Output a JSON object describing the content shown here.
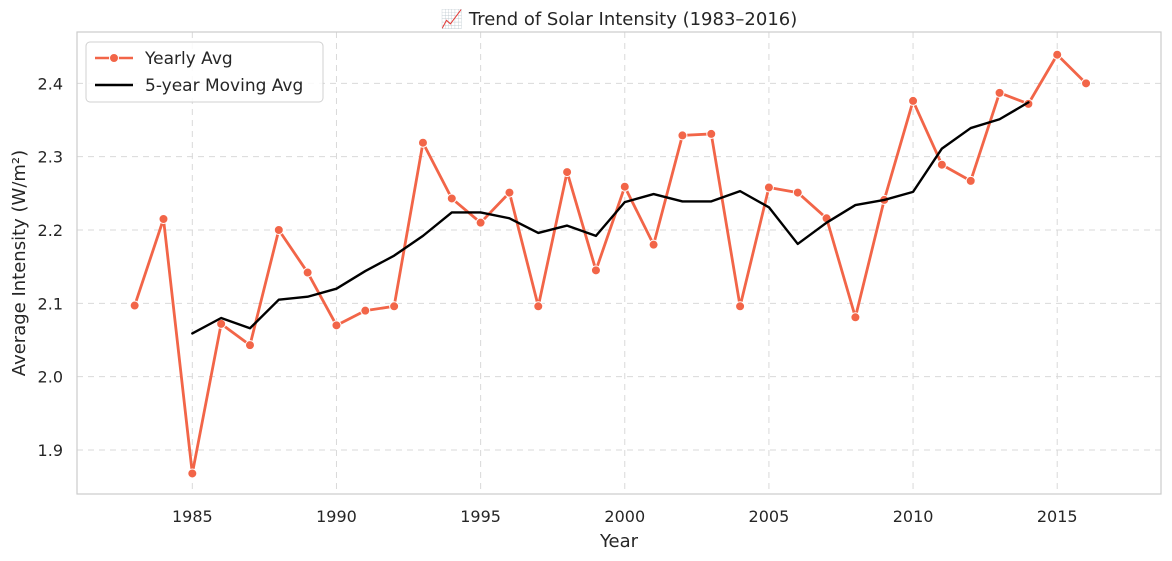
{
  "chart_data": {
    "type": "line",
    "title": "📈 Trend of Solar Intensity (1983–2016)",
    "xlabel": "Year",
    "ylabel": "Average Intensity (W/m²)",
    "xlim": [
      1981,
      2018.6
    ],
    "ylim": [
      1.84,
      2.47
    ],
    "x_ticks": [
      1985,
      1990,
      1995,
      2000,
      2005,
      2010,
      2015
    ],
    "y_ticks": [
      1.9,
      2.0,
      2.1,
      2.2,
      2.3,
      2.4
    ],
    "y_tick_labels": [
      "1.9",
      "2.0",
      "2.1",
      "2.2",
      "2.3",
      "2.4"
    ],
    "grid": true,
    "legend_position": "top-left",
    "series": [
      {
        "name": "Yearly Avg",
        "color": "#f26548",
        "marker": "circle",
        "x": [
          1983,
          1984,
          1985,
          1986,
          1987,
          1988,
          1989,
          1990,
          1991,
          1992,
          1993,
          1994,
          1995,
          1996,
          1997,
          1998,
          1999,
          2000,
          2001,
          2002,
          2003,
          2004,
          2005,
          2006,
          2007,
          2008,
          2009,
          2010,
          2011,
          2012,
          2013,
          2014,
          2015,
          2016
        ],
        "values": [
          2.097,
          2.215,
          1.868,
          2.072,
          2.043,
          2.2,
          2.142,
          2.07,
          2.09,
          2.096,
          2.319,
          2.243,
          2.21,
          2.251,
          2.096,
          2.279,
          2.145,
          2.259,
          2.18,
          2.329,
          2.331,
          2.096,
          2.258,
          2.251,
          2.216,
          2.081,
          2.241,
          2.376,
          2.289,
          2.267,
          2.387,
          2.372,
          2.439,
          2.4
        ]
      },
      {
        "name": "5-year Moving Avg",
        "color": "#000000",
        "marker": "none",
        "x": [
          1985,
          1986,
          1987,
          1988,
          1989,
          1990,
          1991,
          1992,
          1993,
          1994,
          1995,
          1996,
          1997,
          1998,
          1999,
          2000,
          2001,
          2002,
          2003,
          2004,
          2005,
          2006,
          2007,
          2008,
          2009,
          2010,
          2011,
          2012,
          2013,
          2014
        ],
        "values": [
          2.059,
          2.08,
          2.066,
          2.105,
          2.109,
          2.12,
          2.144,
          2.165,
          2.192,
          2.224,
          2.224,
          2.216,
          2.196,
          2.206,
          2.192,
          2.238,
          2.249,
          2.239,
          2.239,
          2.253,
          2.231,
          2.181,
          2.21,
          2.234,
          2.241,
          2.252,
          2.311,
          2.339,
          2.351,
          2.374
        ]
      }
    ]
  }
}
